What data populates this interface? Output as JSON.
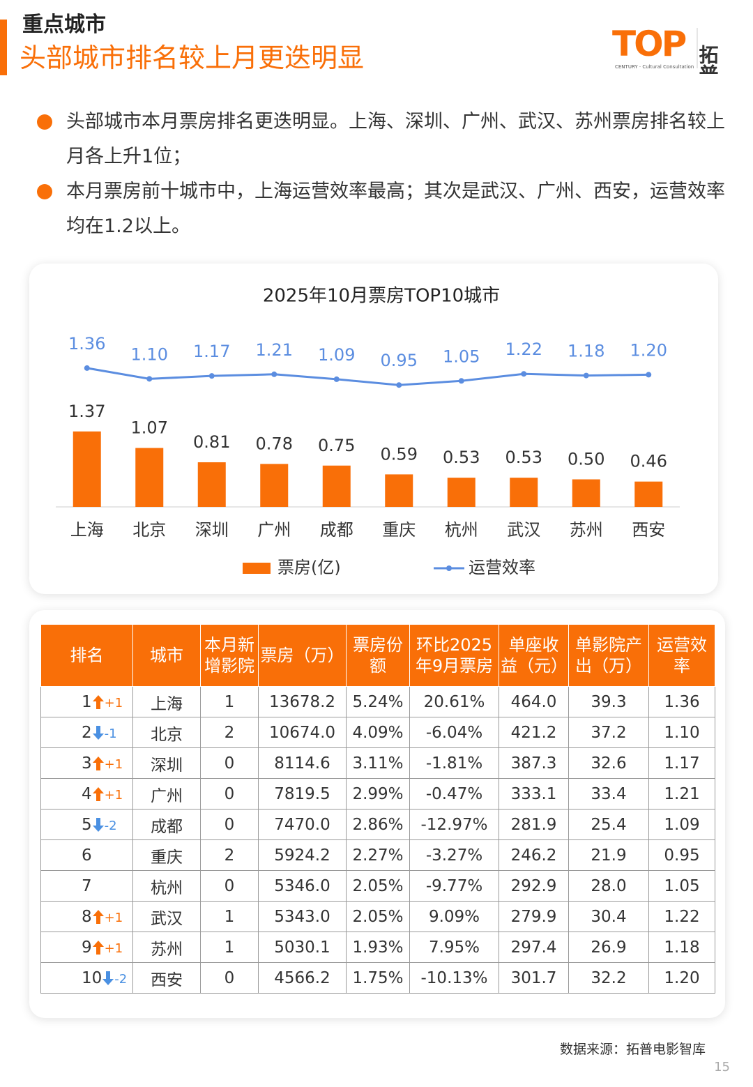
{
  "header": {
    "section": "重点城市",
    "title": "头部城市排名较上月更迭明显"
  },
  "logo": {
    "mark": "TOP",
    "name": "拓普",
    "tagline": "CENTURY · Cultural Consultation"
  },
  "bullets": [
    "头部城市本月票房排名更迭明显。上海、深圳、广州、武汉、苏州票房排名较上月各上升1位；",
    "本月票房前十城市中，上海运营效率最高；其次是武汉、广州、西安，运营效率均在1.2以上。"
  ],
  "chart_data": {
    "type": "bar-line",
    "title": "2025年10月票房TOP10城市",
    "categories": [
      "上海",
      "北京",
      "深圳",
      "广州",
      "成都",
      "重庆",
      "杭州",
      "武汉",
      "苏州",
      "西安"
    ],
    "series": [
      {
        "name": "票房(亿)",
        "type": "bar",
        "color": "#f96f08",
        "values": [
          1.37,
          1.07,
          0.81,
          0.78,
          0.75,
          0.59,
          0.53,
          0.53,
          0.5,
          0.46
        ],
        "value_labels": [
          "1.37",
          "1.07",
          "0.81",
          "0.78",
          "0.75",
          "0.59",
          "0.53",
          "0.53",
          "0.50",
          "0.46"
        ]
      },
      {
        "name": "运营效率",
        "type": "line",
        "axis": "y2",
        "color": "#5b8de0",
        "values": [
          1.36,
          1.1,
          1.17,
          1.21,
          1.09,
          0.95,
          1.05,
          1.22,
          1.18,
          1.2
        ],
        "value_labels": [
          "1.36",
          "1.10",
          "1.17",
          "1.21",
          "1.09",
          "0.95",
          "1.05",
          "1.22",
          "1.18",
          "1.20"
        ]
      }
    ],
    "ylim": [
      0,
      3
    ],
    "y2lim": [
      -2,
      2
    ],
    "legend": "bottom"
  },
  "table": {
    "header": [
      "排名",
      "城市",
      "本月新增影院",
      "票房（万）",
      "票房份额",
      "环比2025年9月票房",
      "单座收益（元）",
      "单影院产出（万）",
      "运营效率"
    ],
    "rows": [
      [
        "1",
        "+1",
        "上海",
        "1",
        "13678.2",
        "5.24%",
        "20.61%",
        "464.0",
        "39.3",
        "1.36"
      ],
      [
        "2",
        "-1",
        "北京",
        "2",
        "10674.0",
        "4.09%",
        "-6.04%",
        "421.2",
        "37.2",
        "1.10"
      ],
      [
        "3",
        "+1",
        "深圳",
        "0",
        "8114.6",
        "3.11%",
        "-1.81%",
        "387.3",
        "32.6",
        "1.17"
      ],
      [
        "4",
        "+1",
        "广州",
        "0",
        "7819.5",
        "2.99%",
        "-0.47%",
        "333.1",
        "33.4",
        "1.21"
      ],
      [
        "5",
        "-2",
        "成都",
        "0",
        "7470.0",
        "2.86%",
        "-12.97%",
        "281.9",
        "25.4",
        "1.09"
      ],
      [
        "6",
        null,
        "重庆",
        "2",
        "5924.2",
        "2.27%",
        "-3.27%",
        "246.2",
        "21.9",
        "0.95"
      ],
      [
        "7",
        null,
        "杭州",
        "0",
        "5346.0",
        "2.05%",
        "-9.77%",
        "292.9",
        "28.0",
        "1.05"
      ],
      [
        "8",
        "+1",
        "武汉",
        "1",
        "5343.0",
        "2.05%",
        "9.09%",
        "279.9",
        "30.4",
        "1.22"
      ],
      [
        "9",
        "+1",
        "苏州",
        "1",
        "5030.1",
        "1.93%",
        "7.95%",
        "297.4",
        "26.9",
        "1.18"
      ],
      [
        "10",
        "-2",
        "西安",
        "0",
        "4566.2",
        "1.75%",
        "-10.13%",
        "301.7",
        "32.2",
        "1.20"
      ]
    ]
  },
  "footer": {
    "source": "数据来源：拓普电影智库",
    "page": "15"
  }
}
